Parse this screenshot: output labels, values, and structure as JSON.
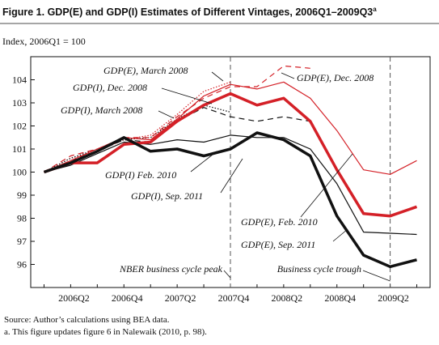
{
  "chart_data": {
    "type": "line",
    "title": "Figure 1.  GDP(E) and GDP(I) Estimates of Different Vintages, 2006Q1–2009Q3",
    "title_superscript": "a",
    "y_axis_label": "Index, 2006Q1 = 100",
    "categories": [
      null,
      "2006Q2",
      null,
      "2006Q4",
      null,
      "2007Q2",
      null,
      "2007Q4",
      null,
      "2008Q2",
      null,
      "2008Q4",
      null,
      "2009Q2",
      null
    ],
    "ylim": [
      95,
      105
    ],
    "yticks": [
      96,
      97,
      98,
      99,
      100,
      101,
      102,
      103,
      104
    ],
    "series": [
      {
        "name": "GDP(E), March 2008",
        "color": "#d42027",
        "width": 1.2,
        "dash": "1.5,2",
        "values": [
          100,
          100.6,
          100.9,
          101.4,
          101.6,
          102.5,
          103.5,
          103.9,
          null,
          null,
          null,
          null,
          null,
          null,
          null
        ]
      },
      {
        "name": "GDP(I), Dec. 2008",
        "color": "#111111",
        "width": 1.2,
        "dash": "7,5",
        "values": [
          100,
          100.5,
          100.9,
          101.4,
          101.3,
          102.2,
          102.8,
          102.4,
          102.2,
          102.4,
          102.2,
          null,
          null,
          null,
          null
        ]
      },
      {
        "name": "GDP(I), March 2008",
        "color": "#111111",
        "width": 1.2,
        "dash": "1.5,2",
        "values": [
          100,
          100.6,
          101.0,
          101.4,
          101.5,
          102.3,
          102.9,
          102.6,
          null,
          null,
          null,
          null,
          null,
          null,
          null
        ]
      },
      {
        "name": "GDP(E), Dec. 2008",
        "color": "#d42027",
        "width": 1.2,
        "dash": "7,5",
        "values": [
          100,
          100.7,
          101.0,
          101.5,
          101.5,
          102.4,
          103.2,
          103.7,
          103.7,
          104.6,
          104.5,
          null,
          null,
          null,
          null
        ]
      },
      {
        "name": "GDP(I) Feb. 2010",
        "color": "#d42027",
        "width": 1.2,
        "dash": "",
        "values": [
          100,
          100.5,
          101.0,
          101.5,
          101.4,
          102.3,
          103.3,
          103.8,
          103.6,
          103.9,
          103.2,
          101.8,
          100.1,
          99.9,
          100.5
        ]
      },
      {
        "name": "GDP(I), Sep. 2011",
        "color": "#111111",
        "width": 1.2,
        "dash": "",
        "values": [
          100,
          100.3,
          100.8,
          101.3,
          101.2,
          101.4,
          101.3,
          101.6,
          101.5,
          101.5,
          101.0,
          99.5,
          97.4,
          97.35,
          97.3
        ]
      },
      {
        "name": "GDP(E), Feb. 2010",
        "color": "#d42027",
        "width": 3.5,
        "dash": "",
        "values": [
          100,
          100.4,
          100.4,
          101.2,
          101.3,
          102.2,
          102.9,
          103.4,
          102.9,
          103.2,
          102.2,
          100.1,
          98.2,
          98.1,
          98.5
        ]
      },
      {
        "name": "GDP(E), Sep. 2011",
        "color": "#111111",
        "width": 3.5,
        "dash": "",
        "values": [
          100,
          100.4,
          100.9,
          101.5,
          100.9,
          101.0,
          100.7,
          101.0,
          101.7,
          101.4,
          100.7,
          98.1,
          96.4,
          95.9,
          96.2
        ]
      }
    ],
    "annotations": [
      {
        "text": "NBER business cycle peak",
        "x": "2007Q4"
      },
      {
        "text": "Business cycle trough",
        "x": "2009Q2"
      }
    ],
    "notes": [
      "Source: Author’s calculations using BEA data.",
      "a. This figure updates figure 6 in Nalewaik (2010, p. 98)."
    ]
  }
}
